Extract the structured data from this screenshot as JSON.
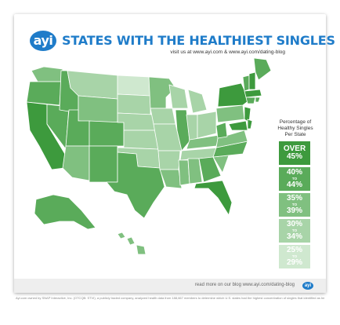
{
  "logo_text": "ayi",
  "title": "STATES WITH THE HEALTHIEST SINGLES",
  "subtitle": "visit us at www.ayi.com & www.ayi.com/dating-blog",
  "legend_title": "Percentage of Healthy Singles Per State",
  "legend": [
    {
      "a": "OVER",
      "to": "",
      "b": "45%",
      "color": "#3d9a3d"
    },
    {
      "a": "40%",
      "to": "TO",
      "b": "44%",
      "color": "#5aab5a"
    },
    {
      "a": "35%",
      "to": "TO",
      "b": "39%",
      "color": "#80c080"
    },
    {
      "a": "30%",
      "to": "TO",
      "b": "34%",
      "color": "#a8d4a8"
    },
    {
      "a": "25%",
      "to": "TO",
      "b": "29%",
      "color": "#cfe8cf"
    }
  ],
  "footer_text": "read more on our blog www.ayi.com/dating-blog",
  "footer_logo": "ayi",
  "disclaimer": "Ayi.com owned by SNAP Interactive, Inc. (OTCQB: STVI), a publicly traded company, analyzed health data from 188,667 members to determine which U.S. states had the highest concentration of singles that identified as healthy eaters."
}
